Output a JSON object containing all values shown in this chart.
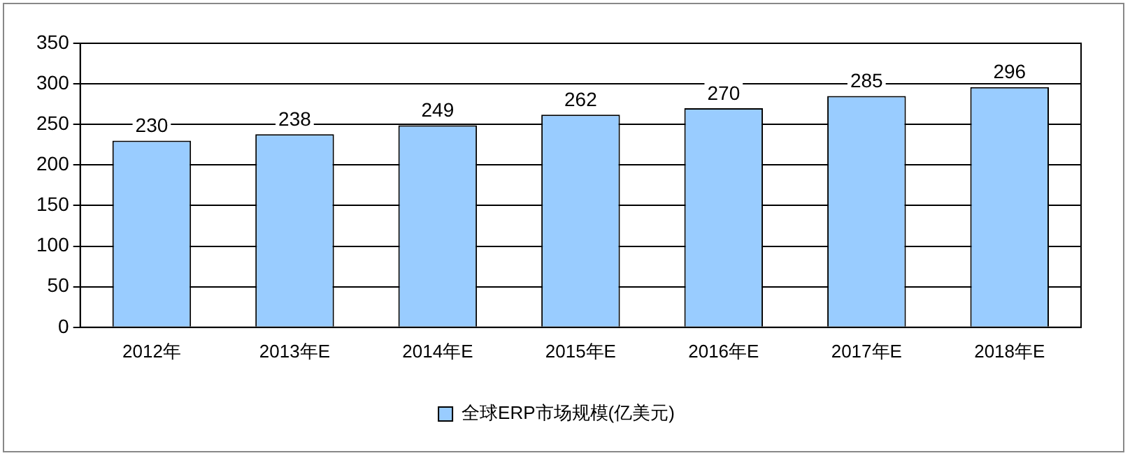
{
  "chart_data": {
    "type": "bar",
    "categories": [
      "2012年",
      "2013年E",
      "2014年E",
      "2015年E",
      "2016年E",
      "2017年E",
      "2018年E"
    ],
    "series": [
      {
        "name": "全球ERP市场规模(亿美元)",
        "color": "#99ccff",
        "values": [
          230,
          238,
          249,
          262,
          270,
          285,
          296
        ]
      }
    ],
    "ylim": [
      0,
      350
    ],
    "yticks": [
      0,
      50,
      100,
      150,
      200,
      250,
      300,
      350
    ],
    "grid": "y",
    "legend": "bottom",
    "data_labels": true
  }
}
